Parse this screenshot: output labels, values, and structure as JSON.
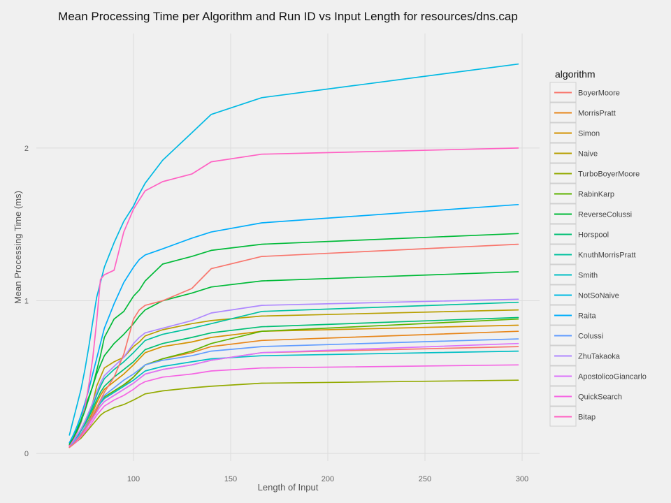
{
  "chart_data": {
    "type": "line",
    "title": "Mean Processing Time per Algorithm and Run ID vs Input Length for resources/dns.cap",
    "xlabel": "Length of Input",
    "ylabel": "Mean Processing Time (ms)",
    "xlim": [
      50,
      309
    ],
    "ylim": [
      -0.05,
      2.75
    ],
    "x_ticks": [
      100,
      150,
      200,
      250,
      300
    ],
    "y_ticks": [
      0,
      1,
      2
    ],
    "grid": true,
    "legend": {
      "title": "algorithm",
      "placement": "right"
    },
    "x": [
      67,
      69,
      71,
      73,
      75,
      77,
      79,
      81,
      83,
      85,
      90,
      95,
      100,
      103,
      106,
      115,
      130,
      140,
      166,
      298
    ],
    "series": [
      {
        "name": "BoyerMoore",
        "color": "#f8766d",
        "values": [
          0.04,
          0.06,
          0.08,
          0.11,
          0.15,
          0.19,
          0.23,
          0.28,
          0.31,
          0.34,
          0.38,
          0.42,
          0.46,
          0.49,
          0.52,
          0.55,
          0.58,
          0.61,
          0.66,
          0.7
        ]
      },
      {
        "name": "MorrisPratt",
        "color": "#e7861b",
        "values": [
          0.05,
          0.07,
          0.09,
          0.12,
          0.16,
          0.2,
          0.24,
          0.29,
          0.33,
          0.36,
          0.4,
          0.44,
          0.5,
          0.54,
          0.58,
          0.62,
          0.66,
          0.7,
          0.74,
          0.8
        ]
      },
      {
        "name": "Simon",
        "color": "#d39200",
        "values": [
          0.05,
          0.07,
          0.1,
          0.13,
          0.17,
          0.22,
          0.27,
          0.33,
          0.38,
          0.42,
          0.47,
          0.52,
          0.58,
          0.62,
          0.66,
          0.7,
          0.73,
          0.76,
          0.8,
          0.84
        ]
      },
      {
        "name": "Naive",
        "color": "#b79f00",
        "values": [
          0.05,
          0.08,
          0.12,
          0.16,
          0.21,
          0.27,
          0.33,
          0.44,
          0.5,
          0.56,
          0.6,
          0.63,
          0.7,
          0.73,
          0.77,
          0.81,
          0.85,
          0.87,
          0.9,
          0.94
        ]
      },
      {
        "name": "TurboBoyerMoore",
        "color": "#93aa00",
        "values": [
          0.04,
          0.06,
          0.08,
          0.1,
          0.13,
          0.16,
          0.19,
          0.22,
          0.25,
          0.27,
          0.3,
          0.32,
          0.35,
          0.37,
          0.39,
          0.41,
          0.43,
          0.44,
          0.46,
          0.48
        ]
      },
      {
        "name": "RabinKarp",
        "color": "#5eb300",
        "values": [
          0.05,
          0.07,
          0.1,
          0.13,
          0.17,
          0.21,
          0.25,
          0.3,
          0.34,
          0.37,
          0.41,
          0.45,
          0.5,
          0.54,
          0.58,
          0.62,
          0.67,
          0.72,
          0.8,
          0.88
        ]
      },
      {
        "name": "ReverseColussi",
        "color": "#00ba38",
        "values": [
          0.06,
          0.1,
          0.16,
          0.22,
          0.3,
          0.37,
          0.44,
          0.52,
          0.58,
          0.64,
          0.72,
          0.78,
          0.85,
          0.9,
          0.94,
          1.0,
          1.05,
          1.09,
          1.13,
          1.19
        ]
      },
      {
        "name": "Horspool",
        "color": "#00bf74",
        "values": [
          0.05,
          0.08,
          0.11,
          0.15,
          0.19,
          0.24,
          0.29,
          0.35,
          0.4,
          0.44,
          0.5,
          0.55,
          0.6,
          0.64,
          0.68,
          0.72,
          0.76,
          0.79,
          0.83,
          0.89
        ]
      },
      {
        "name": "KnuthMorrisPratt",
        "color": "#00c19f",
        "values": [
          0.05,
          0.08,
          0.11,
          0.15,
          0.2,
          0.25,
          0.31,
          0.38,
          0.44,
          0.49,
          0.55,
          0.6,
          0.66,
          0.7,
          0.74,
          0.78,
          0.82,
          0.85,
          0.93,
          0.99
        ]
      },
      {
        "name": "Smith",
        "color": "#00bfc4",
        "values": [
          0.05,
          0.07,
          0.1,
          0.13,
          0.17,
          0.21,
          0.25,
          0.3,
          0.33,
          0.36,
          0.4,
          0.44,
          0.48,
          0.51,
          0.54,
          0.57,
          0.6,
          0.62,
          0.64,
          0.67
        ]
      },
      {
        "name": "NotSoNaive",
        "color": "#00b9e3",
        "values": [
          0.12,
          0.22,
          0.32,
          0.42,
          0.55,
          0.7,
          0.86,
          1.02,
          1.12,
          1.22,
          1.38,
          1.52,
          1.62,
          1.7,
          1.77,
          1.92,
          2.1,
          2.22,
          2.33,
          2.55
        ]
      },
      {
        "name": "Raita",
        "color": "#00adfa",
        "values": [
          0.07,
          0.12,
          0.18,
          0.25,
          0.33,
          0.42,
          0.52,
          0.62,
          0.72,
          0.82,
          0.98,
          1.12,
          1.22,
          1.27,
          1.3,
          1.34,
          1.41,
          1.45,
          1.51,
          1.63
        ]
      },
      {
        "name": "Colussi",
        "color": "#619cff",
        "values": [
          0.05,
          0.07,
          0.1,
          0.13,
          0.17,
          0.21,
          0.25,
          0.3,
          0.34,
          0.38,
          0.43,
          0.48,
          0.52,
          0.55,
          0.58,
          0.61,
          0.64,
          0.67,
          0.7,
          0.75
        ]
      },
      {
        "name": "ZhuTakaoka",
        "color": "#ae87ff",
        "values": [
          0.05,
          0.08,
          0.12,
          0.16,
          0.21,
          0.27,
          0.33,
          0.4,
          0.46,
          0.51,
          0.57,
          0.63,
          0.72,
          0.76,
          0.79,
          0.82,
          0.87,
          0.92,
          0.97,
          1.01
        ]
      },
      {
        "name": "ApostolicoGiancarlo",
        "color": "#db72fb",
        "values": [
          0.04,
          0.06,
          0.09,
          0.12,
          0.15,
          0.19,
          0.23,
          0.27,
          0.31,
          0.34,
          0.38,
          0.42,
          0.46,
          0.49,
          0.52,
          0.55,
          0.58,
          0.61,
          0.66,
          0.72
        ]
      },
      {
        "name": "QuickSearch",
        "color": "#f564e3",
        "values": [
          0.04,
          0.06,
          0.08,
          0.11,
          0.14,
          0.17,
          0.21,
          0.25,
          0.28,
          0.31,
          0.35,
          0.38,
          0.42,
          0.45,
          0.47,
          0.5,
          0.52,
          0.54,
          0.56,
          0.58
        ]
      },
      {
        "name": "Bitap",
        "color": "#ff61c3",
        "values": [
          0.05,
          0.09,
          0.14,
          0.2,
          0.3,
          0.45,
          0.62,
          0.86,
          1.14,
          1.17,
          1.2,
          1.45,
          1.6,
          1.66,
          1.72,
          1.78,
          1.83,
          1.91,
          1.96,
          2.0
        ]
      },
      {
        "color": "#f8766d",
        "values": [
          0.04,
          0.06,
          0.09,
          0.12,
          0.16,
          0.2,
          0.25,
          0.3,
          0.35,
          0.4,
          0.5,
          0.65,
          0.88,
          0.94,
          0.97,
          1.0,
          1.08,
          1.21,
          1.29,
          1.37
        ]
      },
      {
        "color": "#00ba38",
        "values": [
          0.06,
          0.1,
          0.15,
          0.21,
          0.28,
          0.36,
          0.44,
          0.54,
          0.64,
          0.76,
          0.88,
          0.93,
          1.03,
          1.07,
          1.13,
          1.24,
          1.29,
          1.33,
          1.37,
          1.44
        ]
      }
    ]
  }
}
